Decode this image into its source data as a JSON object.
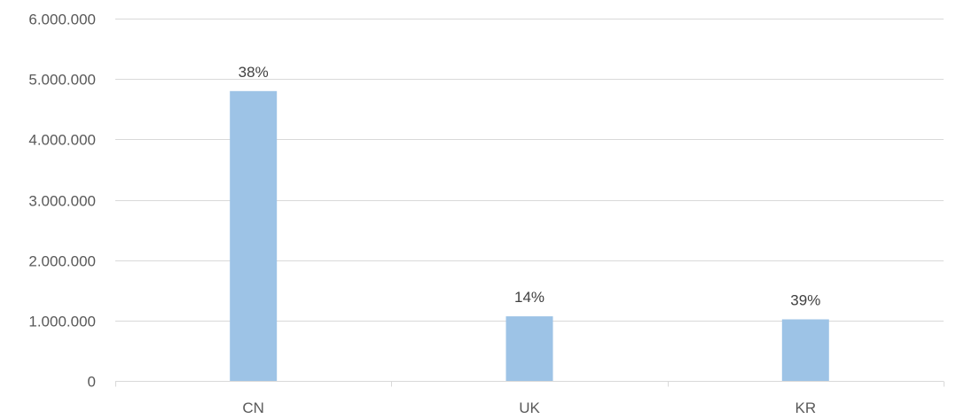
{
  "chart_data": {
    "type": "bar",
    "categories": [
      "CN",
      "UK",
      "KR"
    ],
    "values": [
      4800000,
      1070000,
      1020000
    ],
    "data_labels": [
      "38%",
      "14%",
      "39%"
    ],
    "title": "",
    "xlabel": "",
    "ylabel": "",
    "ylim": [
      0,
      6000000
    ],
    "y_ticks": [
      0,
      1000000,
      2000000,
      3000000,
      4000000,
      5000000,
      6000000
    ],
    "y_tick_labels": [
      "0",
      "1.000.000",
      "2.000.000",
      "3.000.000",
      "4.000.000",
      "5.000.000",
      "6.000.000"
    ],
    "grid": true,
    "legend": "none",
    "bar_color": "#9dc3e6",
    "grid_color": "#d9d9d9",
    "text_color": "#595959"
  }
}
